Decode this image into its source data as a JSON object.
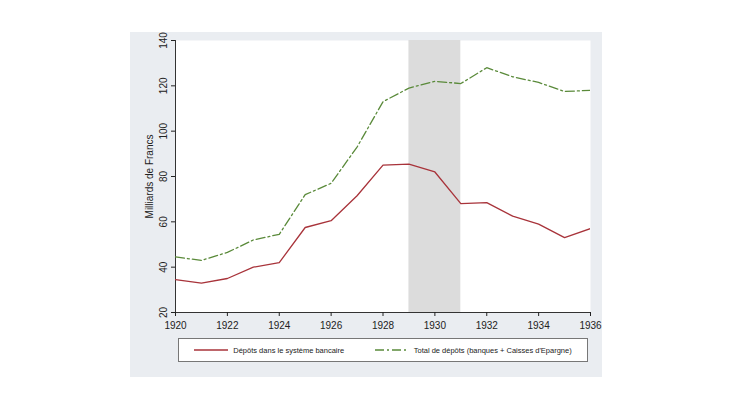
{
  "chart_data": {
    "type": "line",
    "y_label": "Milliards de Francs",
    "x": [
      1920,
      1921,
      1922,
      1923,
      1924,
      1925,
      1926,
      1927,
      1928,
      1929,
      1930,
      1931,
      1932,
      1933,
      1934,
      1935,
      1936
    ],
    "series": [
      {
        "name": "Dépôts dans le système bancaire",
        "color": "#a8333a",
        "line_style": "solid",
        "values": [
          34.5,
          33,
          35,
          40,
          42,
          57.5,
          60.5,
          71.5,
          85,
          85.5,
          82,
          68,
          68.5,
          62.5,
          59,
          53,
          57
        ]
      },
      {
        "name": "Total de dépôts (banques + Caisses d'Epargne)",
        "color": "#5a8a3a",
        "line_style": "dashdot",
        "values": [
          44.5,
          43,
          46.5,
          52,
          54.5,
          72,
          77,
          93,
          113,
          119,
          122,
          121,
          128,
          124,
          121.5,
          117.5,
          118
        ]
      }
    ],
    "shaded_x": [
      1929,
      1931
    ],
    "xlim": [
      1920,
      1936
    ],
    "xticks": [
      1920,
      1922,
      1924,
      1926,
      1928,
      1930,
      1932,
      1934,
      1936
    ],
    "ylim": [
      20,
      140
    ],
    "yticks": [
      20,
      40,
      60,
      80,
      100,
      120,
      140
    ],
    "grid": false,
    "legend": "bottom"
  }
}
